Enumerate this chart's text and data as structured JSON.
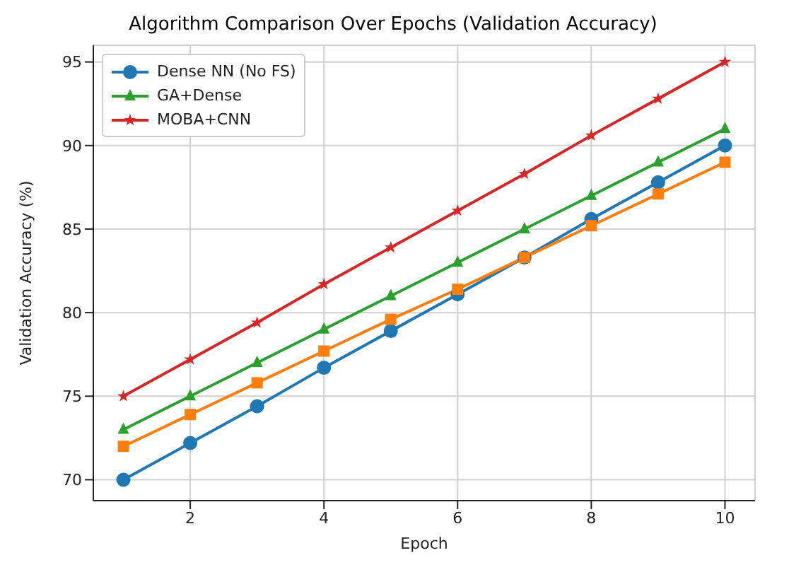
{
  "chart_data": {
    "type": "line",
    "title": "Algorithm Comparison Over Epochs (Validation Accuracy)",
    "xlabel": "Epoch",
    "ylabel": "Validation Accuracy (%)",
    "x": [
      1,
      2,
      3,
      4,
      5,
      6,
      7,
      8,
      9,
      10
    ],
    "series": [
      {
        "name": "Dense NN (No FS)",
        "color": "#1f77b4",
        "marker": "circle",
        "values": [
          70,
          72.2,
          74.4,
          76.7,
          78.9,
          81.1,
          83.3,
          85.6,
          87.8,
          90
        ]
      },
      {
        "color": "#ff7f0e",
        "marker": "square",
        "values": [
          72,
          73.9,
          75.8,
          77.7,
          79.6,
          81.4,
          83.3,
          85.2,
          87.1,
          89
        ]
      },
      {
        "name": "GA+Dense",
        "color": "#2ca02c",
        "marker": "triangle",
        "values": [
          73,
          75,
          77,
          79,
          81,
          83,
          85,
          87,
          89,
          91
        ]
      },
      {
        "name": "MOBA+CNN",
        "color": "#d62728",
        "marker": "star",
        "values": [
          75,
          77.2,
          79.4,
          81.7,
          83.9,
          86.1,
          88.3,
          90.6,
          92.8,
          95
        ]
      }
    ],
    "xlim": [
      0.55,
      10.45
    ],
    "xticks": [
      2,
      4,
      6,
      8,
      10
    ],
    "ylim": [
      68.75,
      96
    ],
    "yticks": [
      70,
      75,
      80,
      85,
      90,
      95
    ],
    "grid": true,
    "legend": "top left",
    "line_style": "solid"
  }
}
